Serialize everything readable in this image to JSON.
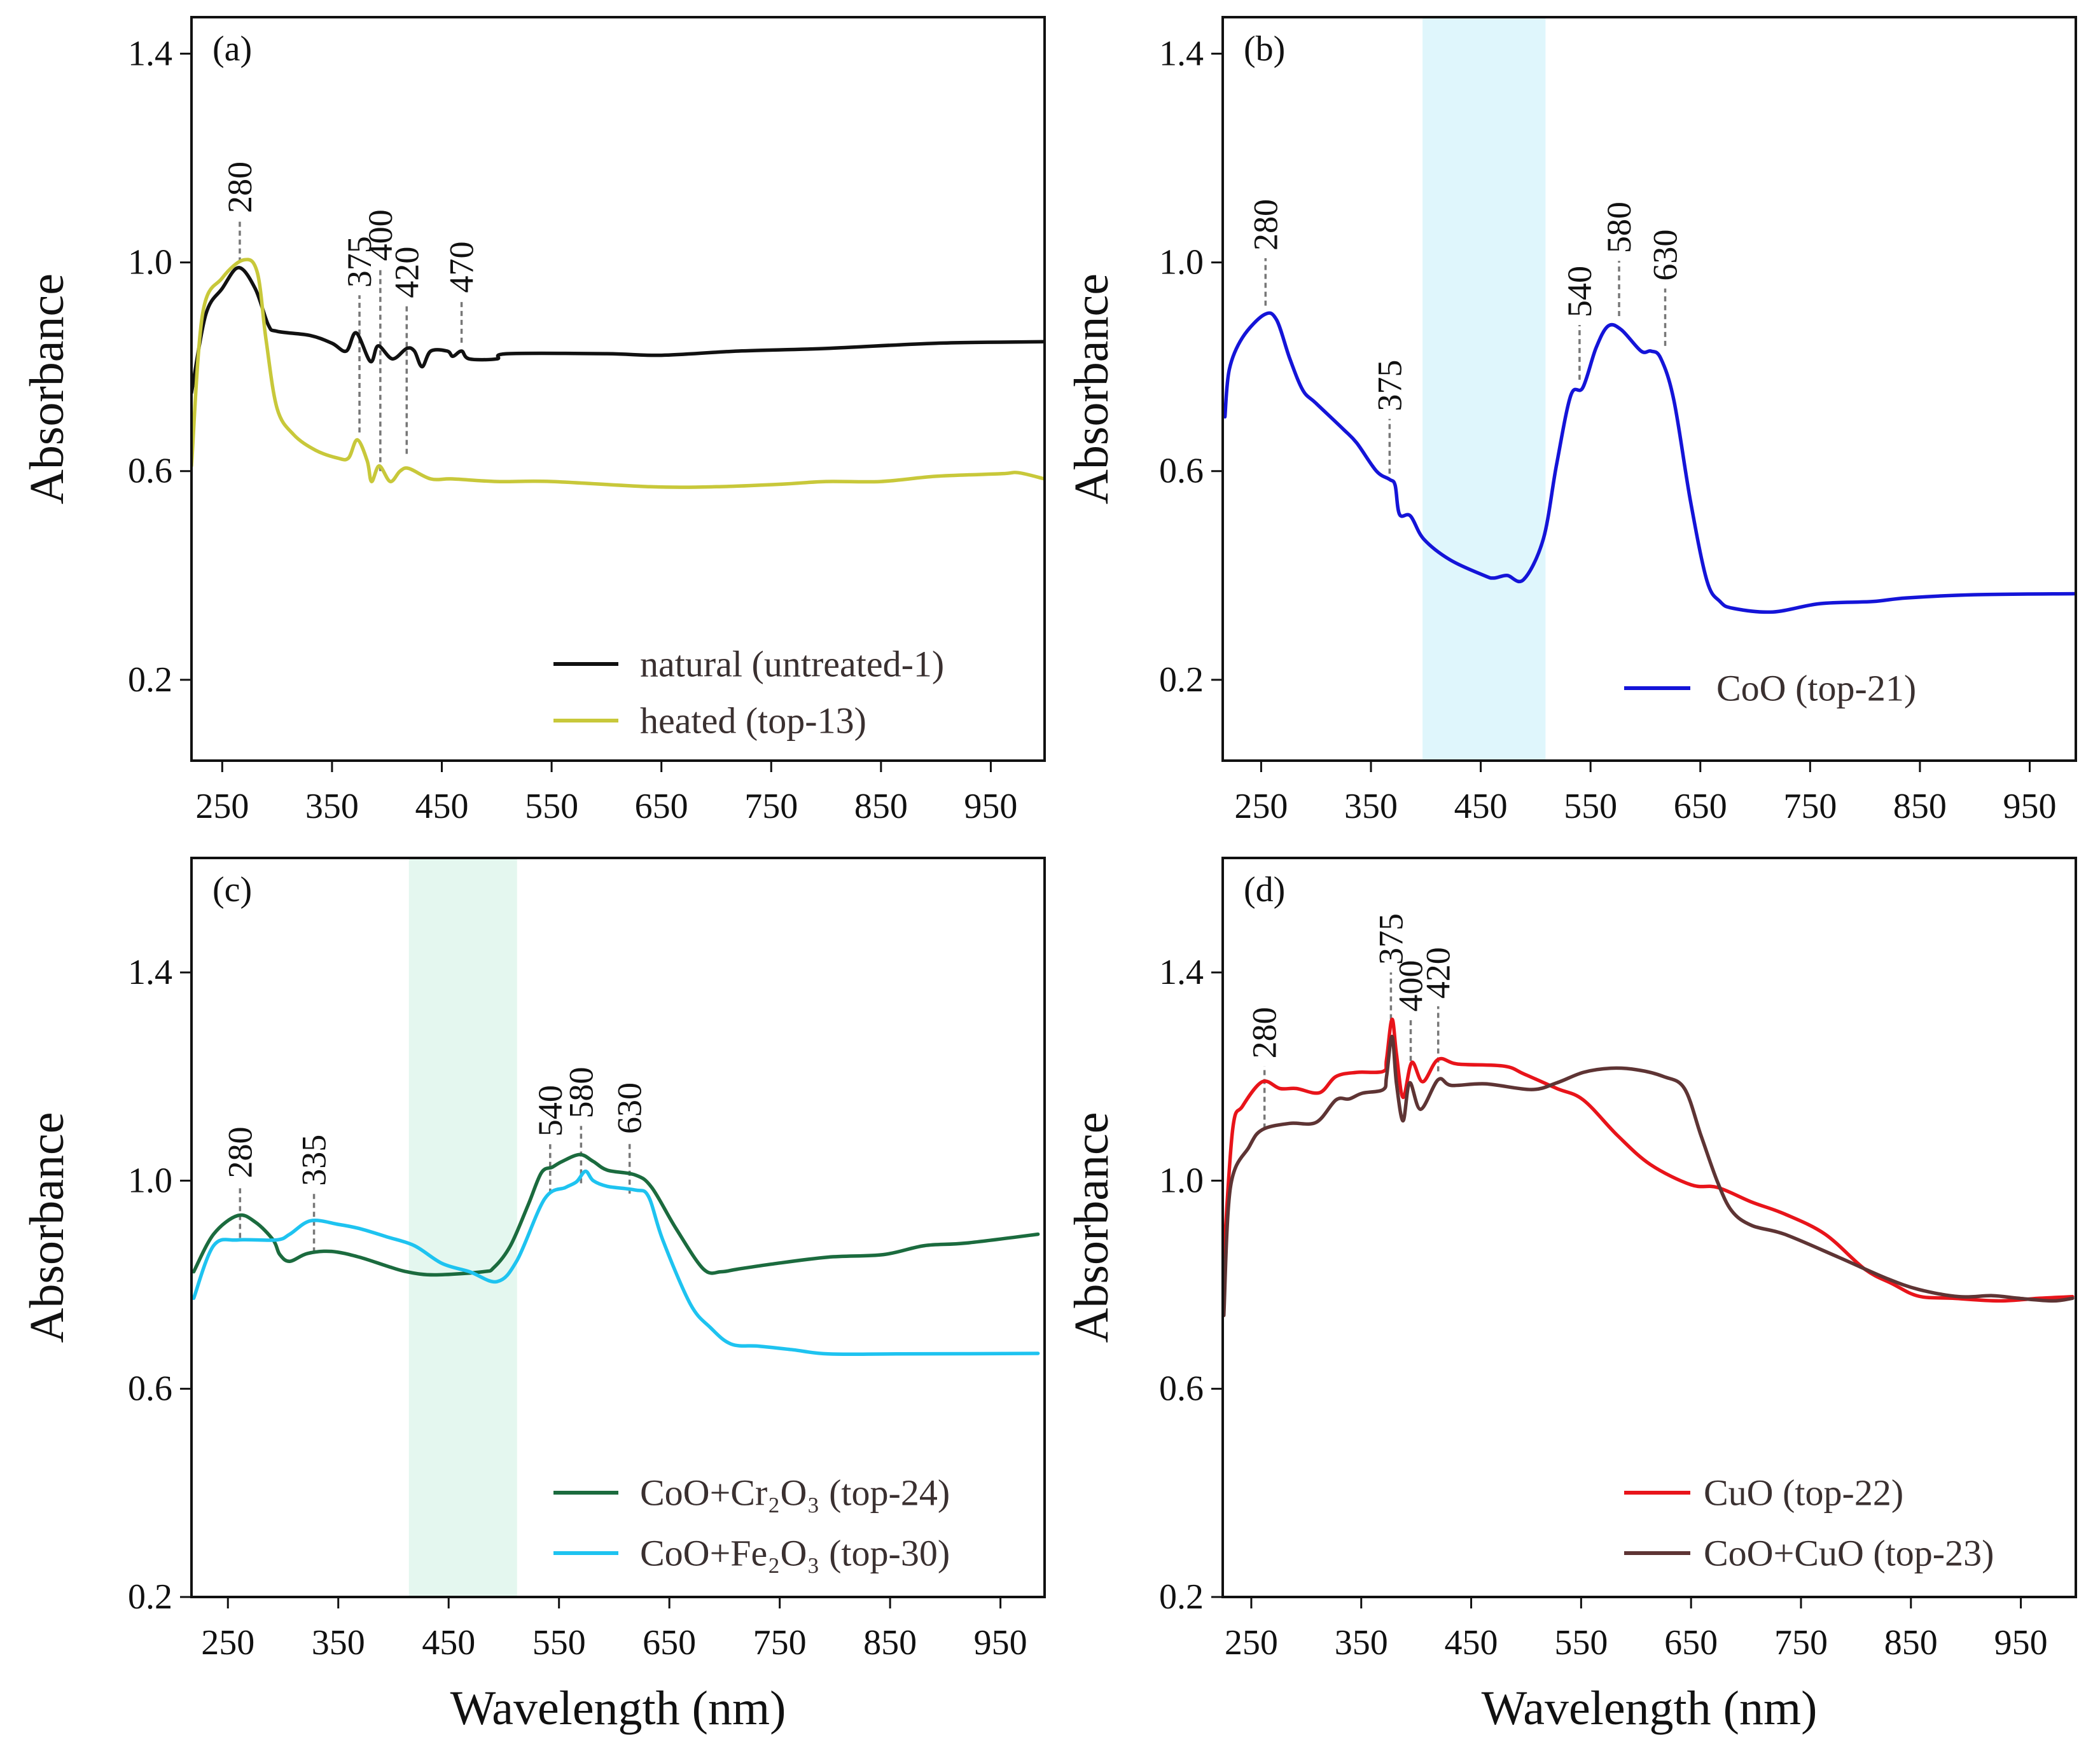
{
  "chart_data": [
    {
      "panel_label": "(a)",
      "type": "line",
      "xlabel": "",
      "ylabel": "Absorbance",
      "xlim": [
        222,
        999
      ],
      "ylim": [
        0.045,
        1.47
      ],
      "xticks": [
        250,
        350,
        450,
        550,
        650,
        750,
        850,
        950
      ],
      "yticks": [
        0.2,
        0.6,
        1.0,
        1.4
      ],
      "ytick_labels": [
        "0.2",
        "0.6",
        "1.0",
        "1.4"
      ],
      "grid": false,
      "legend_position": "bottom-right",
      "series": [
        {
          "name": "natural (untreated-1)",
          "color": "#111111",
          "x": [
            222,
            235,
            250,
            265,
            280,
            292,
            300,
            330,
            350,
            363,
            372,
            385,
            392,
            405,
            418,
            425,
            432,
            440,
            455,
            460,
            468,
            475,
            500,
            510,
            600,
            650,
            720,
            800,
            900,
            999
          ],
          "y": [
            0.75,
            0.9,
            0.95,
            0.99,
            0.95,
            0.88,
            0.868,
            0.86,
            0.845,
            0.83,
            0.865,
            0.81,
            0.84,
            0.815,
            0.835,
            0.83,
            0.8,
            0.83,
            0.83,
            0.82,
            0.83,
            0.815,
            0.815,
            0.825,
            0.825,
            0.822,
            0.83,
            0.835,
            0.845,
            0.848
          ]
        },
        {
          "name": "heated (top-13)",
          "color": "#c8c83a",
          "x": [
            222,
            232,
            250,
            270,
            282,
            290,
            300,
            315,
            335,
            355,
            365,
            373,
            382,
            386,
            393,
            403,
            412,
            420,
            440,
            460,
            500,
            550,
            640,
            700,
            760,
            800,
            850,
            900,
            960,
            975,
            999
          ],
          "y": [
            0.61,
            0.9,
            0.97,
            1.005,
            0.98,
            0.85,
            0.72,
            0.67,
            0.64,
            0.625,
            0.625,
            0.66,
            0.62,
            0.58,
            0.61,
            0.58,
            0.6,
            0.605,
            0.585,
            0.585,
            0.58,
            0.58,
            0.57,
            0.57,
            0.575,
            0.58,
            0.58,
            0.59,
            0.595,
            0.597,
            0.585
          ]
        }
      ],
      "annotations": [
        {
          "label": "280",
          "x": 266,
          "y_from": 1.0,
          "y_to": 1.08
        },
        {
          "label": "375",
          "x": 375,
          "y_from": 0.674,
          "y_to": 0.937
        },
        {
          "label": "400",
          "x": 394,
          "y_from": 0.6,
          "y_to": 0.988
        },
        {
          "label": "420",
          "x": 418,
          "y_from": 0.633,
          "y_to": 0.917
        },
        {
          "label": "470",
          "x": 468,
          "y_from": 0.846,
          "y_to": 0.927
        }
      ]
    },
    {
      "panel_label": "(b)",
      "type": "line",
      "xlabel": "",
      "ylabel": "Absorbance",
      "xlim": [
        215,
        992
      ],
      "ylim": [
        0.045,
        1.47
      ],
      "xticks": [
        250,
        350,
        450,
        550,
        650,
        750,
        850,
        950
      ],
      "yticks": [
        0.2,
        0.6,
        1.0,
        1.4
      ],
      "ytick_labels": [
        "0.2",
        "0.6",
        "1.0",
        "1.4"
      ],
      "grid": false,
      "legend_position": "bottom-right",
      "shaded_band": {
        "x": [
          397,
          509
        ],
        "color": "#dff6fc"
      },
      "series": [
        {
          "name": "CoO (top-21)",
          "color": "#1414d8",
          "x": [
            217,
            221,
            233,
            253,
            264,
            276,
            288,
            300,
            325,
            337,
            355,
            367,
            372,
            376,
            386,
            398,
            422,
            453,
            462,
            474,
            489,
            507,
            519,
            532,
            543,
            555,
            566,
            578,
            596,
            605,
            614,
            626,
            641,
            656,
            668,
            680,
            716,
            759,
            807,
            838,
            899,
            992
          ],
          "y": [
            0.704,
            0.795,
            0.856,
            0.9,
            0.89,
            0.816,
            0.755,
            0.73,
            0.68,
            0.654,
            0.6,
            0.584,
            0.573,
            0.517,
            0.514,
            0.47,
            0.43,
            0.4,
            0.395,
            0.4,
            0.392,
            0.47,
            0.612,
            0.745,
            0.76,
            0.836,
            0.878,
            0.871,
            0.83,
            0.83,
            0.816,
            0.735,
            0.543,
            0.39,
            0.35,
            0.337,
            0.33,
            0.346,
            0.35,
            0.357,
            0.363,
            0.365
          ]
        }
      ],
      "annotations": [
        {
          "label": "280",
          "x": 254,
          "y_from": 0.917,
          "y_to": 1.008
        },
        {
          "label": "375",
          "x": 367,
          "y_from": 0.595,
          "y_to": 0.7
        },
        {
          "label": "540",
          "x": 540,
          "y_from": 0.775,
          "y_to": 0.88
        },
        {
          "label": "580",
          "x": 576,
          "y_from": 0.897,
          "y_to": 1.003
        },
        {
          "label": "630",
          "x": 618,
          "y_from": 0.84,
          "y_to": 0.95
        }
      ]
    },
    {
      "panel_label": "(c)",
      "type": "line",
      "xlabel": "Wavelength (nm)",
      "ylabel": "Absorbance",
      "xlim": [
        217,
        990
      ],
      "ylim": [
        0.2,
        1.62
      ],
      "xticks": [
        250,
        350,
        450,
        550,
        650,
        750,
        850,
        950
      ],
      "yticks": [
        0.2,
        0.6,
        1.0,
        1.4
      ],
      "ytick_labels": [
        "0.2",
        "0.6",
        "1.0",
        "1.4"
      ],
      "grid": false,
      "legend_position": "bottom-right",
      "shaded_band": {
        "x": [
          414,
          512
        ],
        "color": "#e4f7ef"
      },
      "series": [
        {
          "name": "CoO+Cr₂O₃ (top-24)",
          "color": "#1b6b3e",
          "x": [
            219,
            237,
            259,
            275,
            291,
            297,
            306,
            322,
            344,
            369,
            394,
            412,
            437,
            481,
            491,
            506,
            522,
            534,
            544,
            553,
            569,
            581,
            594,
            619,
            634,
            656,
            681,
            697,
            712,
            744,
            794,
            844,
            881,
            919,
            984
          ],
          "y": [
            0.825,
            0.897,
            0.933,
            0.92,
            0.886,
            0.858,
            0.845,
            0.86,
            0.864,
            0.853,
            0.836,
            0.825,
            0.819,
            0.825,
            0.833,
            0.875,
            0.953,
            1.015,
            1.026,
            1.037,
            1.05,
            1.037,
            1.02,
            1.011,
            0.987,
            0.908,
            0.83,
            0.825,
            0.83,
            0.84,
            0.853,
            0.858,
            0.875,
            0.88,
            0.897
          ]
        },
        {
          "name": "CoO+Fe₂O₃ (top-30)",
          "color": "#1ec3f0",
          "x": [
            219,
            237,
            259,
            294,
            306,
            325,
            350,
            369,
            394,
            419,
            444,
            469,
            494,
            512,
            537,
            556,
            566,
            574,
            581,
            594,
            619,
            631,
            644,
            669,
            687,
            706,
            731,
            762,
            794,
            856,
            984
          ],
          "y": [
            0.774,
            0.875,
            0.886,
            0.886,
            0.897,
            0.923,
            0.916,
            0.908,
            0.892,
            0.875,
            0.841,
            0.825,
            0.806,
            0.847,
            0.965,
            0.987,
            0.998,
            1.018,
            1.0,
            0.989,
            0.982,
            0.97,
            0.886,
            0.763,
            0.718,
            0.686,
            0.682,
            0.675,
            0.667,
            0.667,
            0.668
          ]
        }
      ],
      "annotations": [
        {
          "label": "280",
          "x": 261,
          "y_from": 0.89,
          "y_to": 0.99
        },
        {
          "label": "335",
          "x": 328,
          "y_from": 0.862,
          "y_to": 0.975
        },
        {
          "label": "540",
          "x": 542,
          "y_from": 0.975,
          "y_to": 1.07
        },
        {
          "label": "580",
          "x": 570,
          "y_from": 0.995,
          "y_to": 1.105
        },
        {
          "label": "630",
          "x": 614,
          "y_from": 0.975,
          "y_to": 1.075
        }
      ]
    },
    {
      "panel_label": "(d)",
      "type": "line",
      "xlabel": "Wavelength (nm)",
      "ylabel": "Absorbance",
      "xlim": [
        224,
        1000
      ],
      "ylim": [
        0.2,
        1.62
      ],
      "xticks": [
        250,
        350,
        450,
        550,
        650,
        750,
        850,
        950
      ],
      "yticks": [
        0.2,
        0.6,
        1.0,
        1.4
      ],
      "ytick_labels": [
        "0.2",
        "0.6",
        "1.0",
        "1.4"
      ],
      "grid": false,
      "legend_position": "bottom-right",
      "series": [
        {
          "name": "CuO (top-22)",
          "color": "#e8141a",
          "x": [
            225,
            233,
            242,
            260,
            276,
            291,
            312,
            327,
            346,
            370,
            373,
            378,
            382,
            388,
            396,
            406,
            420,
            438,
            480,
            498,
            528,
            552,
            583,
            613,
            650,
            674,
            705,
            735,
            772,
            808,
            833,
            857,
            888,
            930,
            967,
            997
          ],
          "y": [
            0.853,
            1.098,
            1.143,
            1.19,
            1.177,
            1.177,
            1.169,
            1.2,
            1.208,
            1.21,
            1.233,
            1.31,
            1.244,
            1.16,
            1.227,
            1.19,
            1.233,
            1.224,
            1.22,
            1.205,
            1.177,
            1.155,
            1.087,
            1.031,
            0.992,
            0.987,
            0.959,
            0.936,
            0.897,
            0.83,
            0.802,
            0.778,
            0.774,
            0.769,
            0.774,
            0.777
          ]
        },
        {
          "name": "CoO+CuO (top-23)",
          "color": "#5e3434",
          "x": [
            225,
            231,
            248,
            260,
            285,
            309,
            327,
            339,
            351,
            370,
            373,
            378,
            382,
            388,
            394,
            404,
            420,
            432,
            463,
            505,
            528,
            552,
            577,
            601,
            625,
            644,
            659,
            674,
            687,
            705,
            735,
            784,
            827,
            857,
            894,
            924,
            948,
            979,
            997
          ],
          "y": [
            0.741,
            0.987,
            1.065,
            1.098,
            1.11,
            1.112,
            1.155,
            1.157,
            1.168,
            1.175,
            1.2,
            1.277,
            1.188,
            1.115,
            1.188,
            1.137,
            1.194,
            1.183,
            1.186,
            1.175,
            1.188,
            1.208,
            1.216,
            1.213,
            1.2,
            1.177,
            1.087,
            0.998,
            0.942,
            0.914,
            0.897,
            0.853,
            0.813,
            0.791,
            0.777,
            0.779,
            0.774,
            0.769,
            0.774
          ]
        }
      ],
      "annotations": [
        {
          "label": "280",
          "x": 262,
          "y_from": 1.1,
          "y_to": 1.22
        },
        {
          "label": "375",
          "x": 377,
          "y_from": 1.31,
          "y_to": 1.4
        },
        {
          "label": "400",
          "x": 395,
          "y_from": 1.23,
          "y_to": 1.31
        },
        {
          "label": "420",
          "x": 420,
          "y_from": 1.21,
          "y_to": 1.335
        }
      ]
    }
  ]
}
